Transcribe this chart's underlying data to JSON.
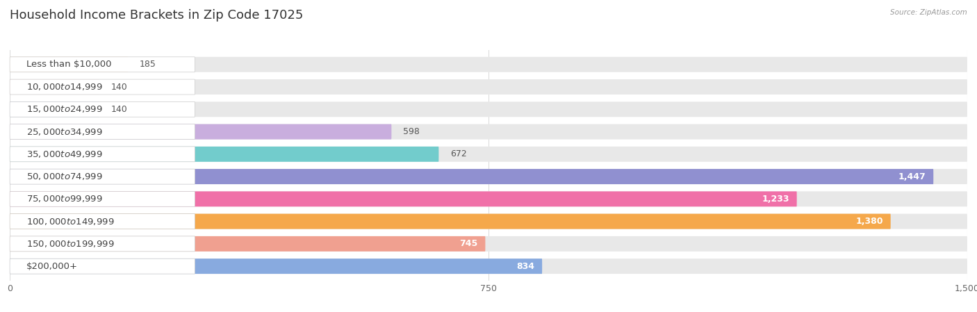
{
  "title": "Household Income Brackets in Zip Code 17025",
  "source": "Source: ZipAtlas.com",
  "categories": [
    "Less than $10,000",
    "$10,000 to $14,999",
    "$15,000 to $24,999",
    "$25,000 to $34,999",
    "$35,000 to $49,999",
    "$50,000 to $74,999",
    "$75,000 to $99,999",
    "$100,000 to $149,999",
    "$150,000 to $199,999",
    "$200,000+"
  ],
  "values": [
    185,
    140,
    140,
    598,
    672,
    1447,
    1233,
    1380,
    745,
    834
  ],
  "bar_colors": [
    "#F6C896",
    "#F2A5A5",
    "#AABFE8",
    "#C9AEDE",
    "#72CCCC",
    "#9090D0",
    "#F070A8",
    "#F5A84B",
    "#F0A090",
    "#88AADF"
  ],
  "bg_color": "#ffffff",
  "bar_bg_color": "#e8e8e8",
  "label_bg_color": "#ffffff",
  "xlim": [
    0,
    1500
  ],
  "xticks": [
    0,
    750,
    1500
  ],
  "title_fontsize": 13,
  "label_fontsize": 9.5,
  "value_fontsize": 9,
  "bar_height": 0.68,
  "bar_gap": 0.12
}
